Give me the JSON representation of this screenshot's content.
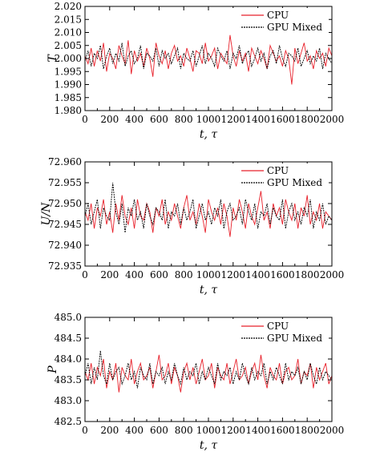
{
  "chart_data": [
    {
      "type": "line",
      "ylabel": "T",
      "xlabel": "t, τ",
      "xlim": [
        0,
        2000
      ],
      "ylim": [
        1.98,
        2.02
      ],
      "x_ticks": [
        0,
        200,
        400,
        600,
        800,
        1000,
        1200,
        1400,
        1600,
        1800,
        2000
      ],
      "y_ticks": [
        1.98,
        1.985,
        1.99,
        1.995,
        2.0,
        2.005,
        2.01,
        2.015,
        2.02
      ],
      "y_tick_labels": [
        "1.980",
        "1.985",
        "1.990",
        "1.995",
        "2.000",
        "2.005",
        "2.010",
        "2.015",
        "2.020"
      ],
      "legend_position": "top-right",
      "series": [
        {
          "name": "CPU",
          "color": "#e8202a",
          "style": "solid",
          "values": [
            2.001,
            1.998,
            2.004,
            1.997,
            2.003,
            1.999,
            2.006,
            1.995,
            2.002,
            2.0,
            1.996,
            2.005,
            2.001,
            1.998,
            2.007,
            1.994,
            2.003,
            1.999,
            2.002,
            1.997,
            2.004,
            2.0,
            1.993,
            2.006,
            2.001,
            1.998,
            2.003,
            1.996,
            2.002,
            2.005,
            1.999,
            2.001,
            1.997,
            2.004,
            2.0,
            1.995,
            2.003,
            2.002,
            1.998,
            2.006,
            1.999,
            2.001,
            2.004,
            1.996,
            2.002,
            2.0,
            1.998,
            2.009,
            2.001,
            1.997,
            2.003,
            1.999,
            2.002,
            1.995,
            2.004,
            2.001,
            1.998,
            2.003,
            2.0,
            1.996,
            2.005,
            2.002,
            1.999,
            2.001,
            1.997,
            2.003,
            2.0,
            1.99,
            2.004,
            1.998,
            2.002,
            2.006,
            1.999,
            2.001,
            1.996,
            2.003,
            2.0,
            2.002,
            1.997,
            2.004,
            2.001
          ]
        },
        {
          "name": "GPU Mixed",
          "color": "#000000",
          "style": "dashed",
          "values": [
            1.999,
            2.003,
            1.997,
            2.002,
            2.0,
            2.005,
            1.996,
            2.001,
            2.004,
            1.998,
            2.002,
            1.999,
            2.006,
            1.997,
            2.001,
            2.003,
            1.998,
            2.0,
            2.005,
            1.996,
            2.002,
            2.001,
            1.999,
            2.004,
            1.997,
            2.003,
            2.0,
            2.002,
            1.998,
            2.001,
            2.004,
            1.996,
            2.002,
            2.0,
            1.999,
            2.003,
            1.997,
            2.001,
            2.005,
            1.998,
            2.002,
            2.0,
            1.997,
            2.004,
            2.001,
            1.999,
            2.003,
            1.996,
            2.002,
            2.0,
            2.005,
            1.998,
            2.001,
            2.003,
            1.997,
            2.0,
            2.004,
            1.999,
            2.002,
            1.996,
            2.001,
            2.003,
            1.998,
            2.005,
            2.0,
            1.997,
            2.002,
            2.001,
            1.999,
            2.004,
            1.997,
            2.0,
            2.003,
            1.998,
            2.001,
            1.999,
            2.004,
            1.996,
            2.002,
            2.0,
            1.998
          ]
        }
      ]
    },
    {
      "type": "line",
      "ylabel": "U/N",
      "xlabel": "t, τ",
      "xlim": [
        0,
        2000
      ],
      "ylim": [
        72.935,
        72.96
      ],
      "x_ticks": [
        0,
        200,
        400,
        600,
        800,
        1000,
        1200,
        1400,
        1600,
        1800,
        2000
      ],
      "y_ticks": [
        72.935,
        72.94,
        72.945,
        72.95,
        72.955,
        72.96
      ],
      "y_tick_labels": [
        "72.935",
        "72.940",
        "72.945",
        "72.950",
        "72.955",
        "72.960"
      ],
      "legend_position": "top-right",
      "series": [
        {
          "name": "CPU",
          "color": "#e8202a",
          "style": "solid",
          "values": [
            72.948,
            72.946,
            72.95,
            72.944,
            72.949,
            72.947,
            72.951,
            72.945,
            72.948,
            72.943,
            72.95,
            72.946,
            72.952,
            72.947,
            72.945,
            72.949,
            72.944,
            72.951,
            72.947,
            72.946,
            72.95,
            72.948,
            72.943,
            72.949,
            72.947,
            72.951,
            72.945,
            72.948,
            72.946,
            72.95,
            72.947,
            72.944,
            72.949,
            72.952,
            72.946,
            72.948,
            72.945,
            72.95,
            72.947,
            72.943,
            72.951,
            72.948,
            72.946,
            72.949,
            72.945,
            72.95,
            72.947,
            72.942,
            72.949,
            72.946,
            72.951,
            72.948,
            72.944,
            72.95,
            72.947,
            72.945,
            72.949,
            72.953,
            72.946,
            72.948,
            72.944,
            72.95,
            72.947,
            72.949,
            72.945,
            72.951,
            72.948,
            72.946,
            72.95,
            72.944,
            72.949,
            72.947,
            72.952,
            72.945,
            72.948,
            72.946,
            72.95,
            72.944,
            72.948,
            72.947,
            72.946
          ]
        },
        {
          "name": "GPU Mixed",
          "color": "#000000",
          "style": "dashed",
          "values": [
            72.947,
            72.95,
            72.945,
            72.948,
            72.951,
            72.944,
            72.949,
            72.947,
            72.946,
            72.955,
            72.948,
            72.945,
            72.95,
            72.943,
            72.949,
            72.947,
            72.951,
            72.946,
            72.948,
            72.944,
            72.95,
            72.947,
            72.945,
            72.949,
            72.948,
            72.946,
            72.951,
            72.944,
            72.948,
            72.947,
            72.95,
            72.945,
            72.949,
            72.946,
            72.948,
            72.951,
            72.944,
            72.947,
            72.95,
            72.946,
            72.948,
            72.945,
            72.949,
            72.947,
            72.951,
            72.944,
            72.948,
            72.95,
            72.946,
            72.947,
            72.949,
            72.945,
            72.951,
            72.948,
            72.946,
            72.95,
            72.944,
            72.948,
            72.947,
            72.95,
            72.945,
            72.949,
            72.947,
            72.946,
            72.951,
            72.944,
            72.948,
            72.95,
            72.946,
            72.948,
            72.945,
            72.949,
            72.947,
            72.951,
            72.944,
            72.948,
            72.946,
            72.95,
            72.945,
            72.947,
            72.946
          ]
        }
      ]
    },
    {
      "type": "line",
      "ylabel": "P",
      "xlabel": "t, τ",
      "xlim": [
        0,
        2000
      ],
      "ylim": [
        482.5,
        485.0
      ],
      "x_ticks": [
        0,
        200,
        400,
        600,
        800,
        1000,
        1200,
        1400,
        1600,
        1800,
        2000
      ],
      "y_ticks": [
        482.5,
        483.0,
        483.5,
        484.0,
        484.5,
        485.0
      ],
      "y_tick_labels": [
        "482.5",
        "483.0",
        "483.5",
        "484.0",
        "484.5",
        "485.0"
      ],
      "legend_position": "top-right",
      "series": [
        {
          "name": "CPU",
          "color": "#e8202a",
          "style": "solid",
          "values": [
            483.7,
            483.5,
            483.9,
            483.4,
            483.8,
            483.6,
            484.0,
            483.3,
            483.7,
            483.5,
            483.9,
            483.2,
            483.8,
            483.6,
            483.5,
            484.0,
            483.4,
            483.7,
            483.9,
            483.5,
            483.6,
            483.8,
            483.3,
            483.7,
            484.1,
            483.5,
            483.6,
            483.9,
            483.4,
            483.8,
            483.6,
            483.2,
            483.7,
            483.9,
            483.5,
            483.8,
            483.4,
            483.7,
            484.0,
            483.5,
            483.6,
            483.9,
            483.3,
            483.8,
            483.6,
            483.5,
            483.9,
            483.4,
            483.7,
            484.0,
            483.5,
            483.6,
            483.8,
            483.4,
            483.7,
            483.9,
            483.5,
            484.1,
            483.6,
            483.3,
            483.8,
            483.6,
            483.5,
            483.9,
            483.4,
            483.7,
            483.8,
            483.5,
            483.6,
            484.0,
            483.4,
            483.7,
            483.6,
            483.9,
            483.3,
            483.8,
            483.5,
            483.7,
            483.9,
            483.4,
            483.6
          ]
        },
        {
          "name": "GPU Mixed",
          "color": "#000000",
          "style": "dashed",
          "values": [
            483.6,
            483.9,
            483.4,
            483.8,
            483.5,
            484.2,
            483.6,
            483.4,
            483.9,
            483.5,
            483.7,
            483.8,
            483.4,
            483.6,
            483.9,
            483.5,
            483.7,
            483.3,
            483.8,
            483.6,
            483.5,
            483.9,
            483.4,
            483.7,
            483.6,
            483.8,
            483.4,
            483.7,
            483.5,
            483.9,
            483.6,
            483.4,
            483.8,
            483.5,
            483.7,
            483.6,
            483.9,
            483.4,
            483.7,
            483.5,
            483.8,
            483.6,
            483.4,
            483.9,
            483.5,
            483.7,
            483.6,
            483.8,
            483.4,
            483.7,
            483.5,
            483.9,
            483.6,
            483.4,
            483.8,
            483.5,
            483.7,
            483.6,
            483.9,
            483.4,
            483.7,
            483.5,
            483.8,
            483.6,
            483.4,
            483.9,
            483.5,
            483.7,
            483.6,
            483.8,
            483.4,
            483.7,
            483.5,
            483.9,
            483.6,
            483.4,
            483.8,
            483.5,
            483.7,
            483.6,
            483.5
          ]
        }
      ]
    }
  ]
}
